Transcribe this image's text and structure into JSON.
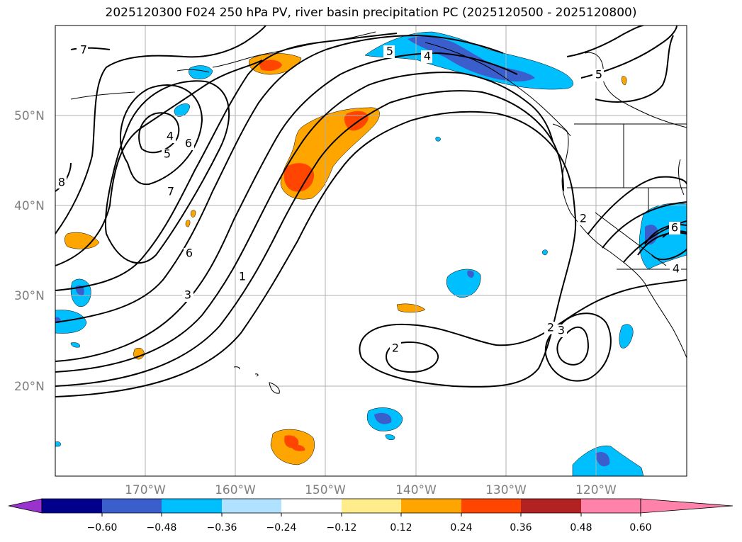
{
  "title": "2025120300 F024 250 hPa PV, river basin precipitation PC (2025120500 - 2025120800)",
  "lat_labels": [
    "50°N",
    "40°N",
    "30°N",
    "20°N"
  ],
  "lon_labels": [
    "170°W",
    "160°W",
    "150°W",
    "140°W",
    "130°W",
    "120°W"
  ],
  "contour_labels": [
    "7",
    "8",
    "4",
    "5",
    "6",
    "7",
    "6",
    "3",
    "1",
    "5",
    "4",
    "5",
    "2",
    "6",
    "4",
    "2",
    "2",
    "3"
  ],
  "colorbar": {
    "ticks": [
      "−0.60",
      "−0.48",
      "−0.36",
      "−0.24",
      "−0.12",
      "0.12",
      "0.24",
      "0.36",
      "0.48",
      "0.60"
    ],
    "colors": [
      "#9a32cd",
      "#00008b",
      "#3a5fcd",
      "#00bfff",
      "#b0e2ff",
      "#ffffff",
      "#ffec8b",
      "#ffa500",
      "#ff4500",
      "#b22222",
      "#ff82ab"
    ]
  },
  "colors": {
    "gridline": "#b0b0b0",
    "contour": "#000000",
    "coast": "#000000"
  }
}
